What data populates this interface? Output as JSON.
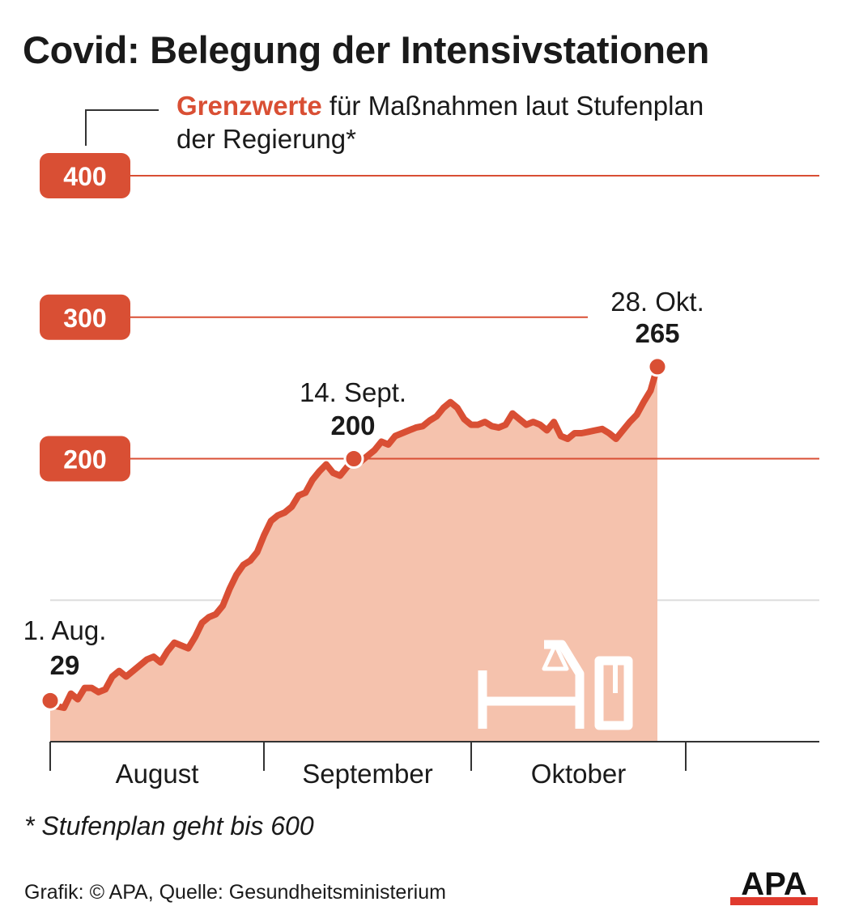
{
  "title": "Covid: Belegung der Intensivstationen",
  "legend": {
    "highlight": "Grenzwerte",
    "text_line1": " für Maßnahmen laut Stufenplan",
    "text_line2": "der Regierung*"
  },
  "footnote": "* Stufenplan geht bis 600",
  "source": "Grafik: © APA, Quelle: Gesundheitsministerium",
  "logo_text": "APA",
  "colors": {
    "accent": "#d94f34",
    "area_fill": "#f5c2ad",
    "text": "#1a1a1a",
    "grid": "#dddddd"
  },
  "icon": "hospital-bed-icon",
  "chart_data": {
    "type": "area",
    "ylim": [
      0,
      400
    ],
    "thresholds": [
      {
        "value": 400,
        "label": "400"
      },
      {
        "value": 300,
        "label": "300"
      },
      {
        "value": 200,
        "label": "200"
      }
    ],
    "months": [
      "August",
      "September",
      "Oktober"
    ],
    "annotations": [
      {
        "day": 0,
        "date": "1. Aug.",
        "value": 29,
        "value_label": "29"
      },
      {
        "day": 44,
        "date": "14. Sept.",
        "value": 200,
        "value_label": "200"
      },
      {
        "day": 88,
        "date": "28. Okt.",
        "value": 265,
        "value_label": "265"
      }
    ],
    "series": [
      {
        "values": [
          29,
          25,
          24,
          34,
          30,
          38,
          38,
          35,
          37,
          46,
          50,
          46,
          50,
          54,
          58,
          60,
          56,
          64,
          70,
          68,
          66,
          74,
          84,
          88,
          90,
          96,
          108,
          118,
          125,
          128,
          134,
          146,
          156,
          160,
          162,
          166,
          174,
          176,
          185,
          191,
          196,
          190,
          188,
          194,
          200,
          198,
          202,
          206,
          212,
          210,
          216,
          218,
          220,
          222,
          223,
          227,
          230,
          236,
          240,
          236,
          228,
          224,
          224,
          226,
          223,
          222,
          224,
          232,
          228,
          224,
          226,
          224,
          220,
          226,
          216,
          214,
          218,
          218,
          219,
          220,
          221,
          218,
          214,
          220,
          226,
          231,
          240,
          248,
          265
        ]
      }
    ]
  }
}
